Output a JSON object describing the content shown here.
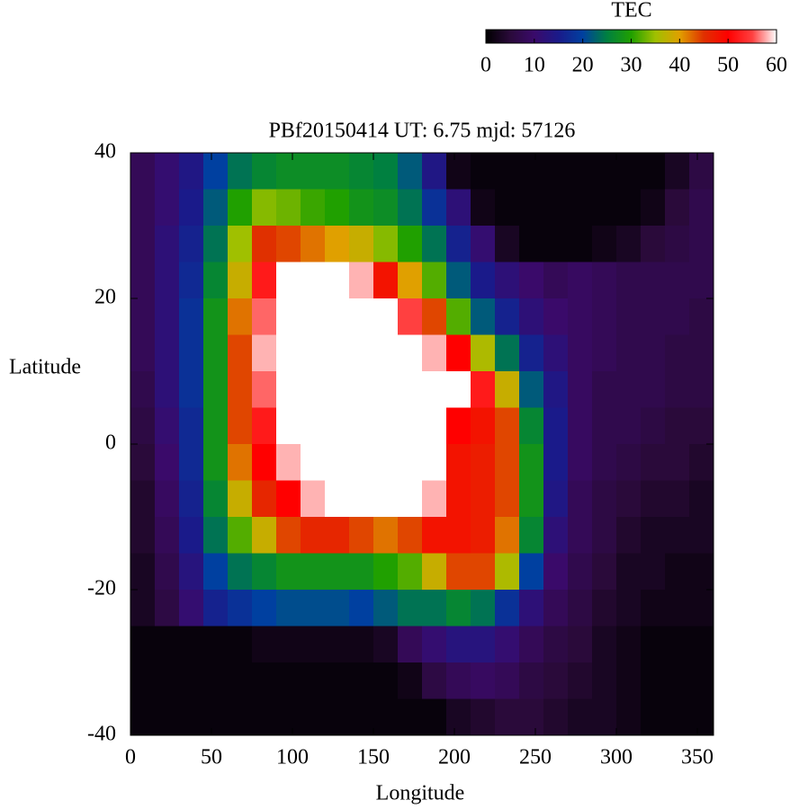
{
  "chart_data": {
    "type": "heatmap",
    "title": "PBf20150414  UT: 6.75  mjd: 57126",
    "x_label": "Longitude",
    "y_label": "Latitude",
    "colorbar_label": "TEC",
    "x": [
      7.5,
      22.5,
      37.5,
      52.5,
      67.5,
      82.5,
      97.5,
      112.5,
      127.5,
      142.5,
      157.5,
      172.5,
      187.5,
      202.5,
      217.5,
      232.5,
      247.5,
      262.5,
      277.5,
      292.5,
      307.5,
      322.5,
      337.5,
      352.5
    ],
    "y": [
      37.5,
      32.5,
      27.5,
      22.5,
      17.5,
      12.5,
      7.5,
      2.5,
      -2.5,
      -7.5,
      -12.5,
      -17.5,
      -22.5,
      -27.5,
      -32.5,
      -37.5
    ],
    "z": [
      [
        8,
        11,
        14,
        20,
        24,
        26,
        27,
        27,
        27,
        26,
        25,
        22,
        14,
        2,
        1,
        1,
        1,
        1,
        1,
        1,
        1,
        1,
        3,
        6
      ],
      [
        8,
        11,
        15,
        22,
        30,
        34,
        33,
        31,
        30,
        28,
        27,
        24,
        18,
        12,
        2,
        1,
        1,
        1,
        1,
        1,
        1,
        2,
        5,
        7
      ],
      [
        8,
        12,
        16,
        24,
        35,
        45,
        44,
        42,
        40,
        38,
        34,
        30,
        24,
        16,
        11,
        3,
        1,
        1,
        1,
        2,
        3,
        5,
        6,
        7
      ],
      [
        8,
        12,
        17,
        26,
        38,
        52,
        60,
        60,
        60,
        58,
        48,
        40,
        32,
        22,
        15,
        12,
        10,
        8,
        9,
        8,
        7,
        7,
        7,
        7
      ],
      [
        8,
        12,
        18,
        28,
        42,
        56,
        60,
        60,
        60,
        60,
        60,
        55,
        44,
        32,
        22,
        16,
        12,
        10,
        9,
        8,
        7,
        7,
        7,
        6
      ],
      [
        8,
        12,
        18,
        28,
        44,
        58,
        60,
        60,
        60,
        60,
        60,
        60,
        58,
        50,
        36,
        24,
        16,
        12,
        9,
        8,
        7,
        7,
        6,
        6
      ],
      [
        7,
        12,
        18,
        28,
        44,
        56,
        60,
        60,
        60,
        60,
        60,
        60,
        60,
        60,
        52,
        38,
        22,
        14,
        9,
        7,
        7,
        7,
        6,
        6
      ],
      [
        6,
        11,
        17,
        28,
        44,
        52,
        60,
        60,
        60,
        60,
        60,
        60,
        60,
        50,
        48,
        44,
        26,
        15,
        9,
        7,
        7,
        6,
        5,
        5
      ],
      [
        5,
        10,
        17,
        28,
        42,
        50,
        58,
        60,
        60,
        60,
        60,
        60,
        60,
        48,
        47,
        44,
        28,
        15,
        9,
        7,
        6,
        5,
        5,
        4
      ],
      [
        4,
        9,
        16,
        26,
        38,
        46,
        50,
        58,
        60,
        60,
        60,
        60,
        58,
        48,
        47,
        44,
        28,
        14,
        8,
        6,
        5,
        4,
        4,
        3
      ],
      [
        4,
        8,
        15,
        24,
        32,
        38,
        44,
        46,
        46,
        44,
        42,
        44,
        48,
        48,
        47,
        42,
        26,
        12,
        8,
        6,
        4,
        3,
        3,
        3
      ],
      [
        3,
        7,
        13,
        20,
        24,
        26,
        28,
        28,
        28,
        28,
        30,
        32,
        38,
        44,
        44,
        36,
        20,
        10,
        7,
        5,
        3,
        3,
        2,
        2
      ],
      [
        3,
        6,
        11,
        16,
        18,
        20,
        21,
        21,
        21,
        20,
        22,
        24,
        24,
        26,
        24,
        18,
        12,
        8,
        6,
        4,
        3,
        2,
        2,
        2
      ],
      [
        1,
        1,
        1,
        1,
        1,
        2,
        2,
        2,
        2,
        2,
        3,
        8,
        11,
        13,
        13,
        11,
        8,
        6,
        5,
        3,
        2,
        1,
        1,
        1
      ],
      [
        1,
        1,
        1,
        1,
        1,
        1,
        1,
        1,
        1,
        1,
        1,
        2,
        6,
        8,
        9,
        8,
        6,
        5,
        4,
        3,
        2,
        1,
        1,
        1
      ],
      [
        1,
        1,
        1,
        1,
        1,
        1,
        1,
        1,
        1,
        1,
        1,
        1,
        1,
        3,
        4,
        5,
        5,
        4,
        3,
        3,
        2,
        1,
        1,
        1
      ]
    ],
    "xlim": [
      0,
      360
    ],
    "xticks": [
      0,
      50,
      100,
      150,
      200,
      250,
      300,
      350
    ],
    "ylim": [
      -40,
      40
    ],
    "yticks": [
      -40,
      -20,
      0,
      20,
      40
    ],
    "zlim": [
      0,
      60
    ],
    "zticks": [
      0,
      10,
      20,
      30,
      40,
      50,
      60
    ],
    "colormap": [
      "#000000",
      "#2a0a3a",
      "#3a0a6a",
      "#1a1a8a",
      "#0040a0",
      "#008040",
      "#20a000",
      "#a0c000",
      "#e0a000",
      "#e03000",
      "#ff0000",
      "#ff4040",
      "#ffffff"
    ]
  }
}
